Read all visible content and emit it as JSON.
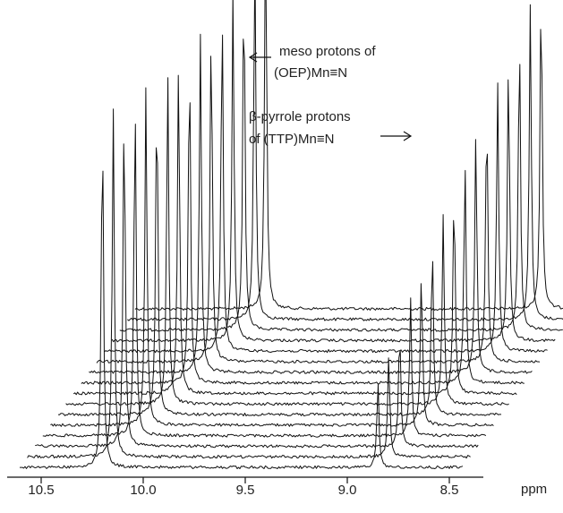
{
  "chart_data": {
    "type": "stacked-nmr-spectra",
    "xlabel": "ppm",
    "x_reversed": true,
    "xlim": [
      10.5,
      8.5
    ],
    "x_ticks": [
      10.5,
      10.0,
      9.5,
      9.0,
      8.5
    ],
    "x_tick_labels": [
      "10.5",
      "10.0",
      "9.5",
      "9.0",
      "8.5"
    ],
    "trace_count": 16,
    "series": [
      {
        "peak": "meso",
        "shift_ppm_first": 10.2,
        "shift_ppm_last": 9.4,
        "relative_heights": [
          0.82,
          0.81,
          0.8,
          0.79,
          0.79,
          0.78,
          0.78,
          0.78,
          0.78,
          0.79,
          0.8,
          0.81,
          0.82,
          0.84,
          0.88,
          0.94
        ]
      },
      {
        "peak": "beta-pyrrole",
        "shift_ppm_first": 8.85,
        "shift_ppm_last": 8.05,
        "relative_heights": [
          0.2,
          0.24,
          0.28,
          0.32,
          0.36,
          0.4,
          0.44,
          0.48,
          0.52,
          0.56,
          0.6,
          0.63,
          0.66,
          0.7,
          0.73,
          0.77
        ]
      }
    ],
    "annotations": [
      {
        "lines": [
          "meso protons of",
          "(OEP)Mn≡N"
        ],
        "arrow": "left"
      },
      {
        "lines": [
          "β-pyrrole protons",
          "of (TTP)Mn≡N"
        ],
        "arrow": "right"
      }
    ]
  }
}
